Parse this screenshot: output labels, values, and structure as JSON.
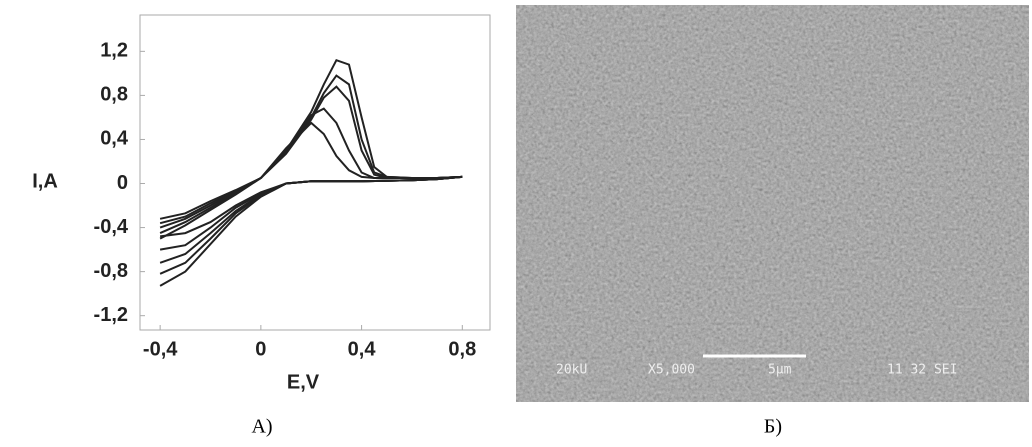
{
  "chart_data": {
    "type": "line",
    "xlabel": "E,V",
    "ylabel": "I,A",
    "x": [
      -0.4,
      -0.3,
      -0.2,
      -0.1,
      0,
      0.1,
      0.2,
      0.25,
      0.3,
      0.35,
      0.4,
      0.45,
      0.5,
      0.6,
      0.7,
      0.8,
      0.7,
      0.6,
      0.4,
      0.2,
      0.1,
      0.05,
      0,
      -0.1,
      -0.2,
      -0.3,
      -0.4
    ],
    "series": [
      {
        "color": "#222222",
        "values": [
          -0.5,
          -0.38,
          -0.24,
          -0.1,
          0.05,
          0.3,
          0.65,
          0.9,
          1.12,
          1.08,
          0.6,
          0.15,
          0.06,
          0.05,
          0.05,
          0.06,
          0.04,
          0.03,
          0.02,
          0.02,
          0.0,
          -0.06,
          -0.12,
          -0.3,
          -0.55,
          -0.8,
          -0.93
        ]
      },
      {
        "color": "#222222",
        "values": [
          -0.45,
          -0.35,
          -0.22,
          -0.09,
          0.05,
          0.28,
          0.6,
          0.82,
          0.98,
          0.9,
          0.4,
          0.1,
          0.06,
          0.05,
          0.05,
          0.06,
          0.04,
          0.03,
          0.02,
          0.02,
          0.0,
          -0.06,
          -0.11,
          -0.27,
          -0.5,
          -0.72,
          -0.82
        ]
      },
      {
        "color": "#222222",
        "values": [
          -0.4,
          -0.32,
          -0.2,
          -0.08,
          0.05,
          0.27,
          0.58,
          0.78,
          0.88,
          0.75,
          0.3,
          0.08,
          0.05,
          0.05,
          0.05,
          0.06,
          0.04,
          0.03,
          0.02,
          0.02,
          0.0,
          -0.05,
          -0.1,
          -0.25,
          -0.45,
          -0.64,
          -0.72
        ]
      },
      {
        "color": "#222222",
        "values": [
          -0.36,
          -0.3,
          -0.18,
          -0.07,
          0.05,
          0.3,
          0.62,
          0.68,
          0.55,
          0.3,
          0.1,
          0.05,
          0.05,
          0.05,
          0.05,
          0.06,
          0.04,
          0.03,
          0.02,
          0.02,
          0.0,
          -0.05,
          -0.09,
          -0.22,
          -0.4,
          -0.56,
          -0.6
        ]
      },
      {
        "color": "#222222",
        "values": [
          -0.32,
          -0.27,
          -0.16,
          -0.06,
          0.05,
          0.32,
          0.55,
          0.45,
          0.25,
          0.12,
          0.06,
          0.05,
          0.05,
          0.05,
          0.05,
          0.06,
          0.04,
          0.03,
          0.02,
          0.02,
          0.0,
          -0.04,
          -0.08,
          -0.2,
          -0.35,
          -0.45,
          -0.48
        ]
      }
    ],
    "xlim": [
      -0.48,
      0.91
    ],
    "ylim": [
      -1.33,
      1.53
    ],
    "xticks": [
      {
        "value": -0.4,
        "label": "-0,4"
      },
      0,
      {
        "value": 0.4,
        "label": "0,4"
      },
      {
        "value": 0.8,
        "label": "0,8"
      }
    ],
    "yticks": [
      {
        "value": -1.2,
        "label": "-1,2"
      },
      {
        "value": -0.8,
        "label": "-0,8"
      },
      {
        "value": -0.4,
        "label": "-0,4"
      },
      0,
      {
        "value": 0.4,
        "label": "0,4"
      },
      {
        "value": 0.8,
        "label": "0,8"
      },
      {
        "value": 1.2,
        "label": "1,2"
      }
    ],
    "grid": false
  },
  "panels": {
    "left_label": "А)",
    "right_label": "Б)"
  },
  "sem_image": {
    "voltage": "20kU",
    "magnification": "X5,000",
    "scale": "5μm",
    "info": "11 32 SEI"
  }
}
